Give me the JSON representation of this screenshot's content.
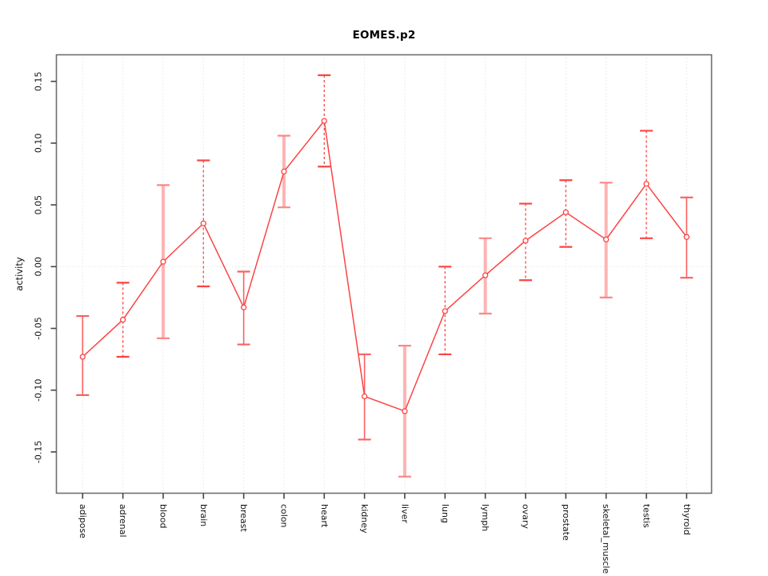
{
  "title": "EOMES.p2",
  "chart_data": {
    "type": "line",
    "title": "EOMES.p2",
    "xlabel": "",
    "ylabel": "activity",
    "categories": [
      "adipose",
      "adrenal",
      "blood",
      "brain",
      "breast",
      "colon",
      "heart",
      "kidney",
      "liver",
      "lung",
      "lymph",
      "ovary",
      "prostate",
      "skeletal_muscle",
      "testis",
      "thyroid"
    ],
    "series": [
      {
        "name": "EOMES.p2 activity",
        "values": [
          -0.073,
          -0.043,
          0.004,
          0.035,
          -0.033,
          0.077,
          0.118,
          -0.105,
          -0.117,
          -0.036,
          -0.007,
          0.021,
          0.044,
          0.022,
          0.067,
          0.024
        ],
        "upper": [
          -0.04,
          -0.013,
          0.066,
          0.086,
          -0.004,
          0.106,
          0.155,
          -0.071,
          -0.064,
          0.0,
          0.023,
          0.051,
          0.07,
          0.068,
          0.11,
          0.056
        ],
        "lower": [
          -0.104,
          -0.073,
          -0.058,
          -0.016,
          -0.063,
          0.048,
          0.081,
          -0.14,
          -0.17,
          -0.071,
          -0.038,
          -0.011,
          0.016,
          -0.025,
          0.023,
          -0.009
        ]
      }
    ],
    "error_bar_styles": [
      "solid",
      "dashed",
      "thick",
      "dashed",
      "solid",
      "thick",
      "dashed",
      "solid",
      "thick",
      "dashed",
      "thick",
      "dashed",
      "dashed",
      "thick",
      "dashed",
      "solid"
    ],
    "yticks": [
      "0.15",
      "0.10",
      "0.05",
      "0.00",
      "-0.05",
      "-0.10",
      "-0.15"
    ],
    "ylim": [
      -0.184,
      0.172
    ],
    "grid": {
      "vertical_dotted_at_each_category": true,
      "horizontal_dotted_at_zero": true
    },
    "legend": "none",
    "marker": "open-circle",
    "colors": {
      "line": "#fb4444",
      "marker": "#fb4444",
      "error_solid": "#fb6060",
      "error_dashed": "#fb4444",
      "error_thick": "#ffb3b3",
      "error_thick_cap": "#fb8888",
      "grid": "#d9d9d9",
      "box": "#6e6e6e",
      "tick": "#444444",
      "text": "#111111"
    }
  }
}
